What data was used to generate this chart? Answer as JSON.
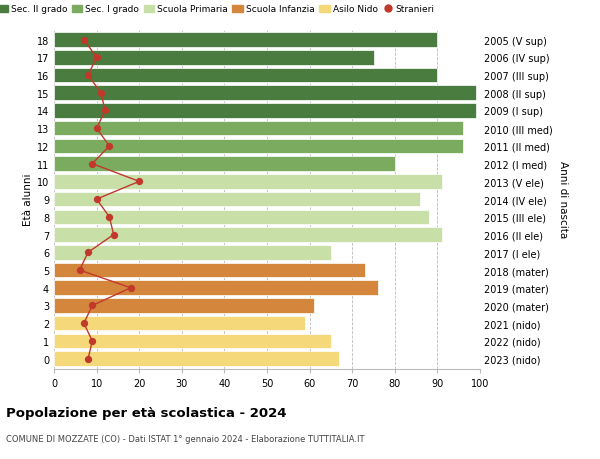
{
  "ages": [
    18,
    17,
    16,
    15,
    14,
    13,
    12,
    11,
    10,
    9,
    8,
    7,
    6,
    5,
    4,
    3,
    2,
    1,
    0
  ],
  "years": [
    "2005 (V sup)",
    "2006 (IV sup)",
    "2007 (III sup)",
    "2008 (II sup)",
    "2009 (I sup)",
    "2010 (III med)",
    "2011 (II med)",
    "2012 (I med)",
    "2013 (V ele)",
    "2014 (IV ele)",
    "2015 (III ele)",
    "2016 (II ele)",
    "2017 (I ele)",
    "2018 (mater)",
    "2019 (mater)",
    "2020 (mater)",
    "2021 (nido)",
    "2022 (nido)",
    "2023 (nido)"
  ],
  "bar_values": [
    90,
    75,
    90,
    99,
    99,
    96,
    96,
    80,
    91,
    86,
    88,
    91,
    65,
    73,
    76,
    61,
    59,
    65,
    67
  ],
  "bar_colors": [
    "#4a7c3f",
    "#4a7c3f",
    "#4a7c3f",
    "#4a7c3f",
    "#4a7c3f",
    "#7aab5e",
    "#7aab5e",
    "#7aab5e",
    "#c8dfa8",
    "#c8dfa8",
    "#c8dfa8",
    "#c8dfa8",
    "#c8dfa8",
    "#d4863c",
    "#d4863c",
    "#d4863c",
    "#f5d87a",
    "#f5d87a",
    "#f5d87a"
  ],
  "stranieri_values": [
    7,
    10,
    8,
    11,
    12,
    10,
    13,
    9,
    20,
    10,
    13,
    14,
    8,
    6,
    18,
    9,
    7,
    9,
    8
  ],
  "legend_labels": [
    "Sec. II grado",
    "Sec. I grado",
    "Scuola Primaria",
    "Scuola Infanzia",
    "Asilo Nido",
    "Stranieri"
  ],
  "legend_colors": [
    "#4a7c3f",
    "#7aab5e",
    "#c8dfa8",
    "#d4863c",
    "#f5d87a",
    "#c0392b"
  ],
  "title": "Popolazione per età scolastica - 2024",
  "subtitle": "COMUNE DI MOZZATE (CO) - Dati ISTAT 1° gennaio 2024 - Elaborazione TUTTITALIA.IT",
  "ylabel_left": "Età alunni",
  "ylabel_right": "Anni di nascita",
  "xlim": [
    0,
    100
  ],
  "bar_height": 0.82,
  "background_color": "#ffffff",
  "grid_color": "#bbbbbb",
  "stranieri_color": "#c0392b"
}
